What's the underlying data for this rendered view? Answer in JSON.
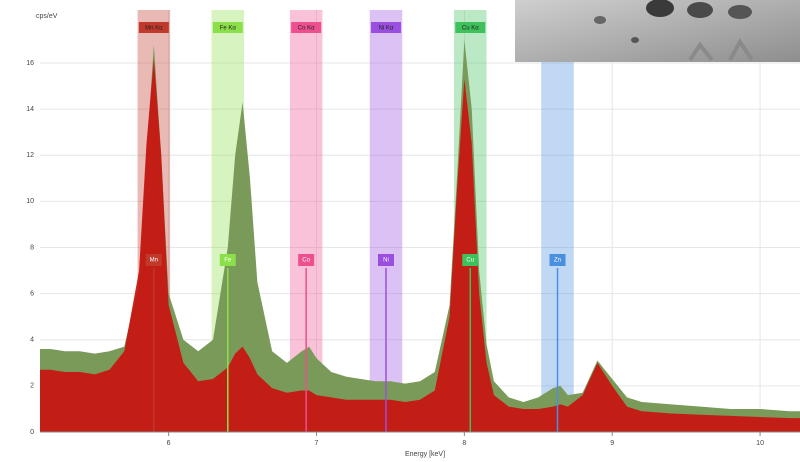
{
  "chart_data": {
    "type": "area",
    "y_label": "cps/eV",
    "x_label": "Energy [keV]",
    "x": [
      5.2,
      5.3,
      5.4,
      5.5,
      5.6,
      5.7,
      5.8,
      5.85,
      5.9,
      5.95,
      6.0,
      6.1,
      6.2,
      6.3,
      6.4,
      6.45,
      6.5,
      6.55,
      6.6,
      6.7,
      6.8,
      6.9,
      6.95,
      7.0,
      7.1,
      7.2,
      7.3,
      7.4,
      7.5,
      7.6,
      7.7,
      7.8,
      7.9,
      7.95,
      8.0,
      8.05,
      8.1,
      8.15,
      8.2,
      8.3,
      8.4,
      8.5,
      8.6,
      8.65,
      8.7,
      8.8,
      8.9,
      9.0,
      9.1,
      9.2,
      9.4,
      9.6,
      9.8,
      10.0,
      10.2
    ],
    "series": [
      {
        "color": "#7a9a5a",
        "values": [
          3.6,
          3.5,
          3.5,
          3.4,
          3.5,
          3.7,
          6.5,
          12,
          16.8,
          12,
          6,
          4,
          3.5,
          4,
          8,
          12,
          14.3,
          11,
          6.5,
          3.5,
          3,
          3.5,
          3.7,
          3.2,
          2.6,
          2.4,
          2.3,
          2.2,
          2.2,
          2.1,
          2.2,
          2.6,
          5.5,
          11,
          17,
          14,
          7,
          3.8,
          2.2,
          1.5,
          1.3,
          1.5,
          1.9,
          2,
          1.6,
          1.7,
          3.1,
          2.3,
          1.5,
          1.3,
          1.2,
          1.1,
          1.0,
          1.0,
          0.9
        ]
      },
      {
        "color": "#c8140f",
        "values": [
          2.7,
          2.6,
          2.6,
          2.5,
          2.7,
          3.5,
          7,
          12.5,
          16.2,
          12,
          5.5,
          3,
          2.2,
          2.3,
          2.8,
          3.4,
          3.7,
          3.2,
          2.5,
          1.9,
          1.7,
          1.8,
          1.8,
          1.6,
          1.5,
          1.4,
          1.4,
          1.4,
          1.4,
          1.3,
          1.4,
          1.8,
          5,
          10.5,
          15.3,
          12.5,
          6,
          3,
          1.6,
          1.1,
          1.0,
          1.0,
          1.1,
          1.2,
          1.1,
          1.6,
          3,
          2,
          1.1,
          0.9,
          0.8,
          0.75,
          0.7,
          0.65,
          0.6
        ]
      }
    ],
    "markers": [
      {
        "energy": 5.9,
        "top_label": "Mn Kα",
        "label": "Mn",
        "color": "#c0392b"
      },
      {
        "energy": 6.4,
        "top_label": "Fe Kα",
        "label": "Fe",
        "color": "#8be04a"
      },
      {
        "energy": 6.93,
        "top_label": "Co Kα",
        "label": "Co",
        "color": "#ee4f8f"
      },
      {
        "energy": 7.47,
        "top_label": "Ni Kα",
        "label": "Ni",
        "color": "#9a4fe0"
      },
      {
        "energy": 8.04,
        "top_label": "Cu Kα",
        "label": "Cu",
        "color": "#3ec05a"
      },
      {
        "energy": 8.63,
        "label": "Zn",
        "color": "#4a90e0"
      }
    ],
    "xlim": [
      5.13,
      10.27
    ],
    "ylim": [
      0,
      18.3
    ],
    "xticks": [
      6,
      7,
      8,
      9,
      10
    ],
    "yticks": [
      0,
      2,
      4,
      6,
      8,
      10,
      12,
      14,
      16
    ],
    "grid": true
  }
}
